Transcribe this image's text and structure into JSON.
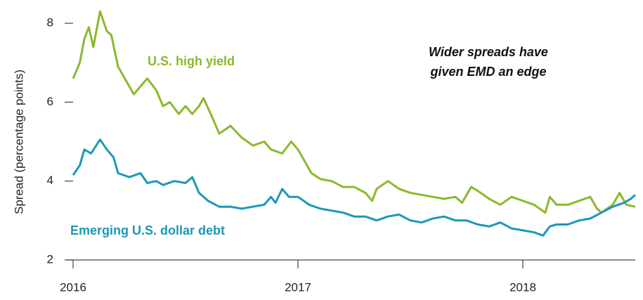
{
  "chart_data": {
    "type": "line",
    "y_label": "Spread (percentage points)",
    "xlim": [
      2016,
      2018.5
    ],
    "xticks": [
      2016,
      2017,
      2018
    ],
    "ylim": [
      2,
      8.5
    ],
    "yticks": [
      2,
      4,
      6,
      8
    ],
    "grid": false,
    "annotation": [
      "Wider spreads have",
      "given EMD an edge"
    ],
    "series": [
      {
        "name": "U.S. high yield",
        "color": "#8ab92d",
        "x": [
          2016.0,
          2016.03,
          2016.05,
          2016.07,
          2016.09,
          2016.12,
          2016.15,
          2016.17,
          2016.2,
          2016.23,
          2016.27,
          2016.3,
          2016.33,
          2016.37,
          2016.4,
          2016.43,
          2016.47,
          2016.5,
          2016.53,
          2016.56,
          2016.58,
          2016.62,
          2016.65,
          2016.7,
          2016.75,
          2016.8,
          2016.85,
          2016.88,
          2016.93,
          2016.97,
          2017.0,
          2017.03,
          2017.06,
          2017.1,
          2017.15,
          2017.2,
          2017.25,
          2017.3,
          2017.33,
          2017.35,
          2017.4,
          2017.45,
          2017.5,
          2017.55,
          2017.6,
          2017.65,
          2017.7,
          2017.73,
          2017.77,
          2017.8,
          2017.85,
          2017.9,
          2017.95,
          2018.0,
          2018.05,
          2018.1,
          2018.12,
          2018.15,
          2018.2,
          2018.25,
          2018.3,
          2018.33,
          2018.35,
          2018.4,
          2018.43,
          2018.46,
          2018.5
        ],
        "values": [
          6.6,
          7.0,
          7.6,
          7.9,
          7.4,
          8.3,
          7.8,
          7.7,
          6.9,
          6.6,
          6.2,
          6.4,
          6.6,
          6.3,
          5.9,
          6.0,
          5.7,
          5.9,
          5.7,
          5.9,
          6.1,
          5.6,
          5.2,
          5.4,
          5.1,
          4.9,
          5.0,
          4.8,
          4.7,
          5.0,
          4.8,
          4.5,
          4.2,
          4.05,
          4.0,
          3.85,
          3.85,
          3.7,
          3.5,
          3.8,
          4.0,
          3.8,
          3.7,
          3.65,
          3.6,
          3.55,
          3.6,
          3.45,
          3.85,
          3.75,
          3.55,
          3.4,
          3.6,
          3.5,
          3.4,
          3.2,
          3.6,
          3.4,
          3.4,
          3.5,
          3.6,
          3.3,
          3.2,
          3.4,
          3.7,
          3.4,
          3.35
        ]
      },
      {
        "name": "Emerging U.S. dollar debt",
        "color": "#1b98b8",
        "x": [
          2016.0,
          2016.03,
          2016.05,
          2016.08,
          2016.12,
          2016.15,
          2016.18,
          2016.2,
          2016.25,
          2016.3,
          2016.33,
          2016.37,
          2016.4,
          2016.45,
          2016.5,
          2016.53,
          2016.56,
          2016.6,
          2016.65,
          2016.7,
          2016.75,
          2016.8,
          2016.85,
          2016.88,
          2016.9,
          2016.93,
          2016.96,
          2017.0,
          2017.05,
          2017.1,
          2017.2,
          2017.25,
          2017.3,
          2017.35,
          2017.4,
          2017.45,
          2017.5,
          2017.55,
          2017.6,
          2017.65,
          2017.7,
          2017.75,
          2017.8,
          2017.85,
          2017.9,
          2017.95,
          2018.0,
          2018.05,
          2018.09,
          2018.12,
          2018.15,
          2018.2,
          2018.25,
          2018.3,
          2018.35,
          2018.4,
          2018.45,
          2018.48,
          2018.5
        ],
        "values": [
          4.15,
          4.4,
          4.8,
          4.7,
          5.05,
          4.8,
          4.6,
          4.2,
          4.1,
          4.2,
          3.95,
          4.0,
          3.9,
          4.0,
          3.95,
          4.1,
          3.7,
          3.5,
          3.35,
          3.35,
          3.3,
          3.35,
          3.4,
          3.6,
          3.45,
          3.8,
          3.6,
          3.6,
          3.4,
          3.3,
          3.2,
          3.1,
          3.1,
          3.0,
          3.1,
          3.15,
          3.0,
          2.95,
          3.05,
          3.1,
          3.0,
          3.0,
          2.9,
          2.85,
          2.95,
          2.8,
          2.75,
          2.7,
          2.62,
          2.85,
          2.9,
          2.9,
          3.0,
          3.05,
          3.2,
          3.35,
          3.45,
          3.55,
          3.65
        ]
      }
    ]
  }
}
